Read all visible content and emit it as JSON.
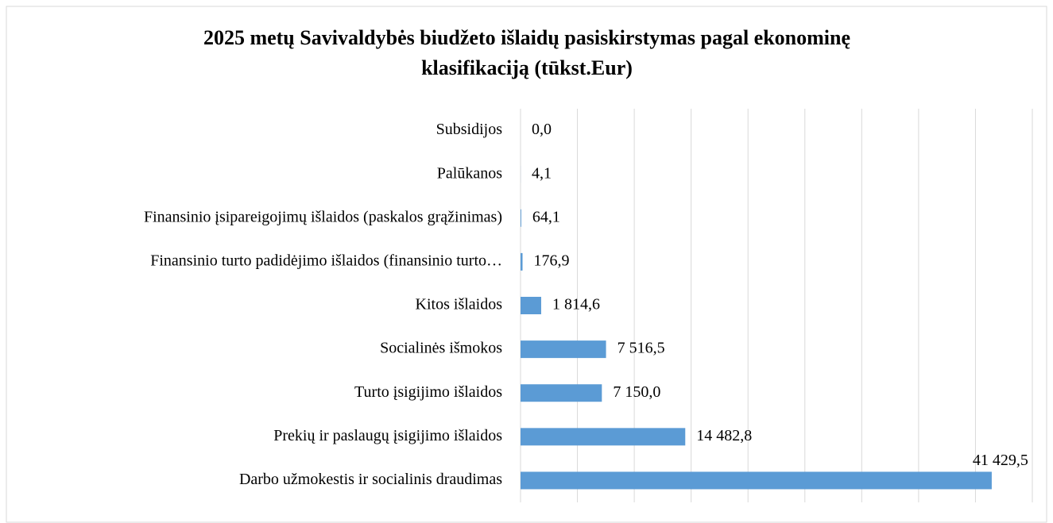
{
  "chart_data": {
    "type": "barh",
    "title": "2025 metų Savivaldybės biudžeto išlaidų pasiskirstymas pagal ekonominę klasifikaciją (tūkst.Eur)",
    "categories": [
      "Subsidijos",
      "Palūkanos",
      "Finansinio įsipareigojimų  išlaidos (paskalos grąžinimas)",
      "Finansinio turto padidėjimo išlaidos (finansinio turto…",
      "Kitos išlaidos",
      "Socialinės išmokos",
      "Turto įsigijimo išlaidos",
      "Prekių ir paslaugų įsigijimo išlaidos",
      "Darbo užmokestis ir socialinis draudimas"
    ],
    "values": [
      0.0,
      4.1,
      64.1,
      176.9,
      1814.6,
      7516.5,
      7150.0,
      14482.8,
      41429.5
    ],
    "value_labels": [
      "0,0",
      "4,1",
      "64,1",
      "176,9",
      "1 814,6",
      "7 516,5",
      "7 150,0",
      "14 482,8",
      "41 429,5"
    ],
    "color": "#5b9bd5",
    "xlim": [
      0,
      45000
    ],
    "xticks": [
      0,
      5000,
      10000,
      15000,
      20000,
      25000,
      30000,
      35000,
      40000,
      45000
    ],
    "grid": true
  }
}
